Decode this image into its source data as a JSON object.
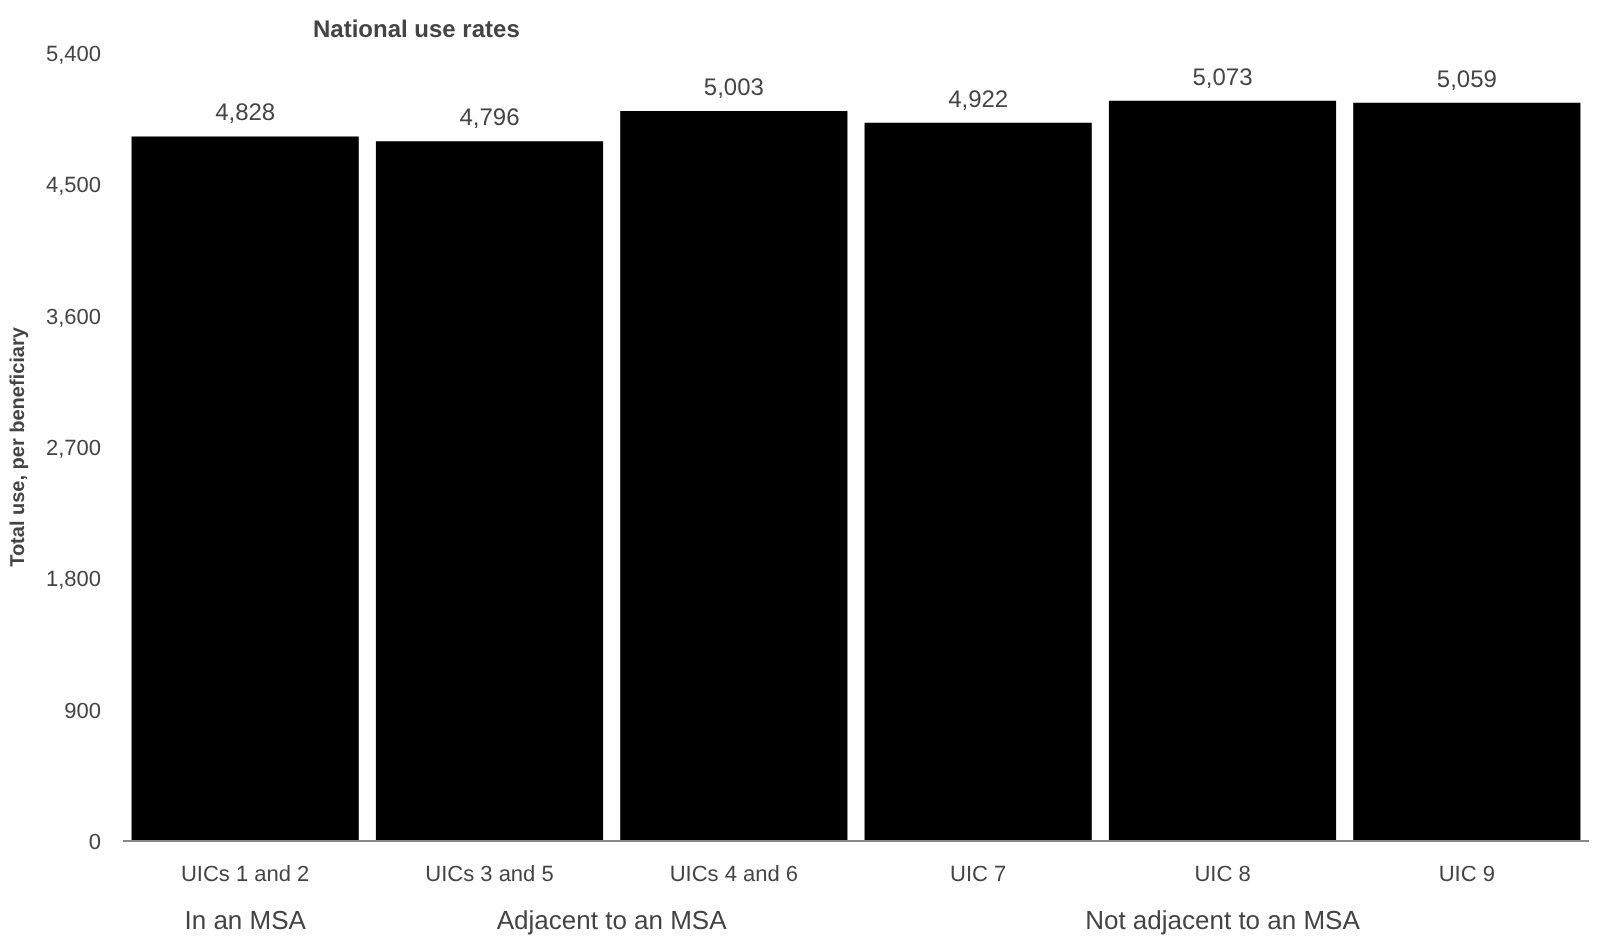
{
  "chart_data": {
    "type": "bar",
    "title": "National use rates",
    "ylabel": "Total use, per beneficiary",
    "categories": [
      "UICs 1 and 2",
      "UICs 3 and 5",
      "UICs 4 and 6",
      "UIC 7",
      "UIC 8",
      "UIC 9"
    ],
    "values": [
      4828,
      4796,
      5003,
      4922,
      5073,
      5059
    ],
    "color": "#000000",
    "ylim": [
      0,
      5400
    ],
    "yticks": [
      {
        "value": 0,
        "label": "0"
      },
      {
        "value": 900,
        "label": "900"
      },
      {
        "value": 1800,
        "label": "1,800"
      },
      {
        "value": 2700,
        "label": "2,700"
      },
      {
        "value": 3600,
        "label": "3,600"
      },
      {
        "value": 4500,
        "label": "4,500"
      },
      {
        "value": 5400,
        "label": "5,400"
      }
    ],
    "value_labels": [
      "4,828",
      "4,796",
      "5,003",
      "4,922",
      "5,073",
      "5,059"
    ],
    "annotations": [
      "In an MSA",
      "Adjacent to an MSA",
      "Not adjacent to an MSA"
    ],
    "grid": false
  }
}
